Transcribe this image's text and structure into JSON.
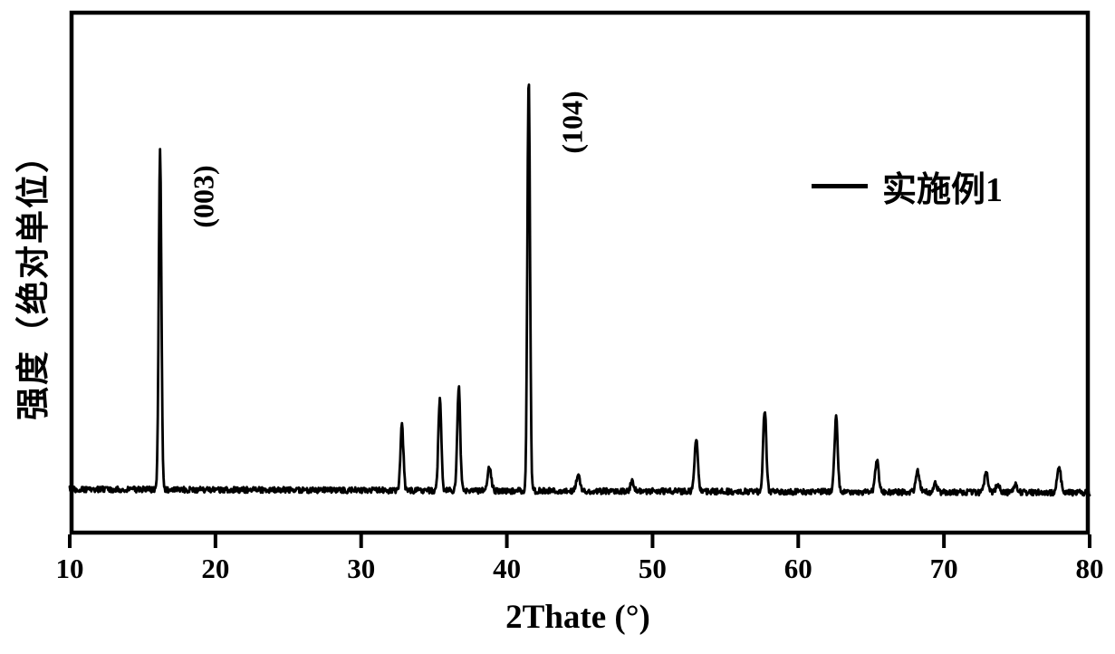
{
  "figure": {
    "background": "#ffffff",
    "foreground": "#000000"
  },
  "chart_data": {
    "type": "line",
    "chart_kind": "xrd-diffraction-pattern",
    "title": "",
    "xlabel": "2Thate (°)",
    "ylabel": "强度（绝对单位）",
    "xlim": [
      10,
      80
    ],
    "ylim": [
      0,
      1.1
    ],
    "x_ticks": [
      10,
      20,
      30,
      40,
      50,
      60,
      70,
      80
    ],
    "y_ticks": [],
    "grid": false,
    "legend": {
      "position": "upper-right",
      "entries": [
        {
          "label": "实施例1",
          "color": "#000000",
          "marker": "line"
        }
      ]
    },
    "series": [
      {
        "name": "实施例1",
        "color": "#000000",
        "baseline_intensity": 0.004,
        "baseline_tilt_per_degree": -0.00012,
        "noise_amplitude": 0.007,
        "peaks": [
          {
            "two_theta": 16.2,
            "rel_intensity": 0.82,
            "width_deg": 0.09
          },
          {
            "two_theta": 32.8,
            "rel_intensity": 0.16,
            "width_deg": 0.1
          },
          {
            "two_theta": 35.4,
            "rel_intensity": 0.22,
            "width_deg": 0.1
          },
          {
            "two_theta": 36.7,
            "rel_intensity": 0.25,
            "width_deg": 0.1
          },
          {
            "two_theta": 38.8,
            "rel_intensity": 0.055,
            "width_deg": 0.13
          },
          {
            "two_theta": 41.5,
            "rel_intensity": 1.0,
            "width_deg": 0.09
          },
          {
            "two_theta": 44.9,
            "rel_intensity": 0.04,
            "width_deg": 0.12
          },
          {
            "two_theta": 48.6,
            "rel_intensity": 0.022,
            "width_deg": 0.12
          },
          {
            "two_theta": 53.0,
            "rel_intensity": 0.13,
            "width_deg": 0.11
          },
          {
            "two_theta": 57.7,
            "rel_intensity": 0.195,
            "width_deg": 0.11
          },
          {
            "two_theta": 62.6,
            "rel_intensity": 0.178,
            "width_deg": 0.11
          },
          {
            "two_theta": 65.4,
            "rel_intensity": 0.078,
            "width_deg": 0.12
          },
          {
            "two_theta": 68.2,
            "rel_intensity": 0.05,
            "width_deg": 0.13
          },
          {
            "two_theta": 69.4,
            "rel_intensity": 0.022,
            "width_deg": 0.13
          },
          {
            "two_theta": 72.9,
            "rel_intensity": 0.05,
            "width_deg": 0.12
          },
          {
            "two_theta": 73.7,
            "rel_intensity": 0.02,
            "width_deg": 0.14
          },
          {
            "two_theta": 74.9,
            "rel_intensity": 0.018,
            "width_deg": 0.14
          },
          {
            "two_theta": 77.9,
            "rel_intensity": 0.065,
            "width_deg": 0.12
          }
        ]
      }
    ],
    "annotations": [
      {
        "text": "(003)",
        "two_theta": 16.2,
        "rel_intensity": 0.82,
        "rotation_deg": -90
      },
      {
        "text": "(104)",
        "two_theta": 41.5,
        "rel_intensity": 1.0,
        "rotation_deg": -90
      }
    ]
  }
}
